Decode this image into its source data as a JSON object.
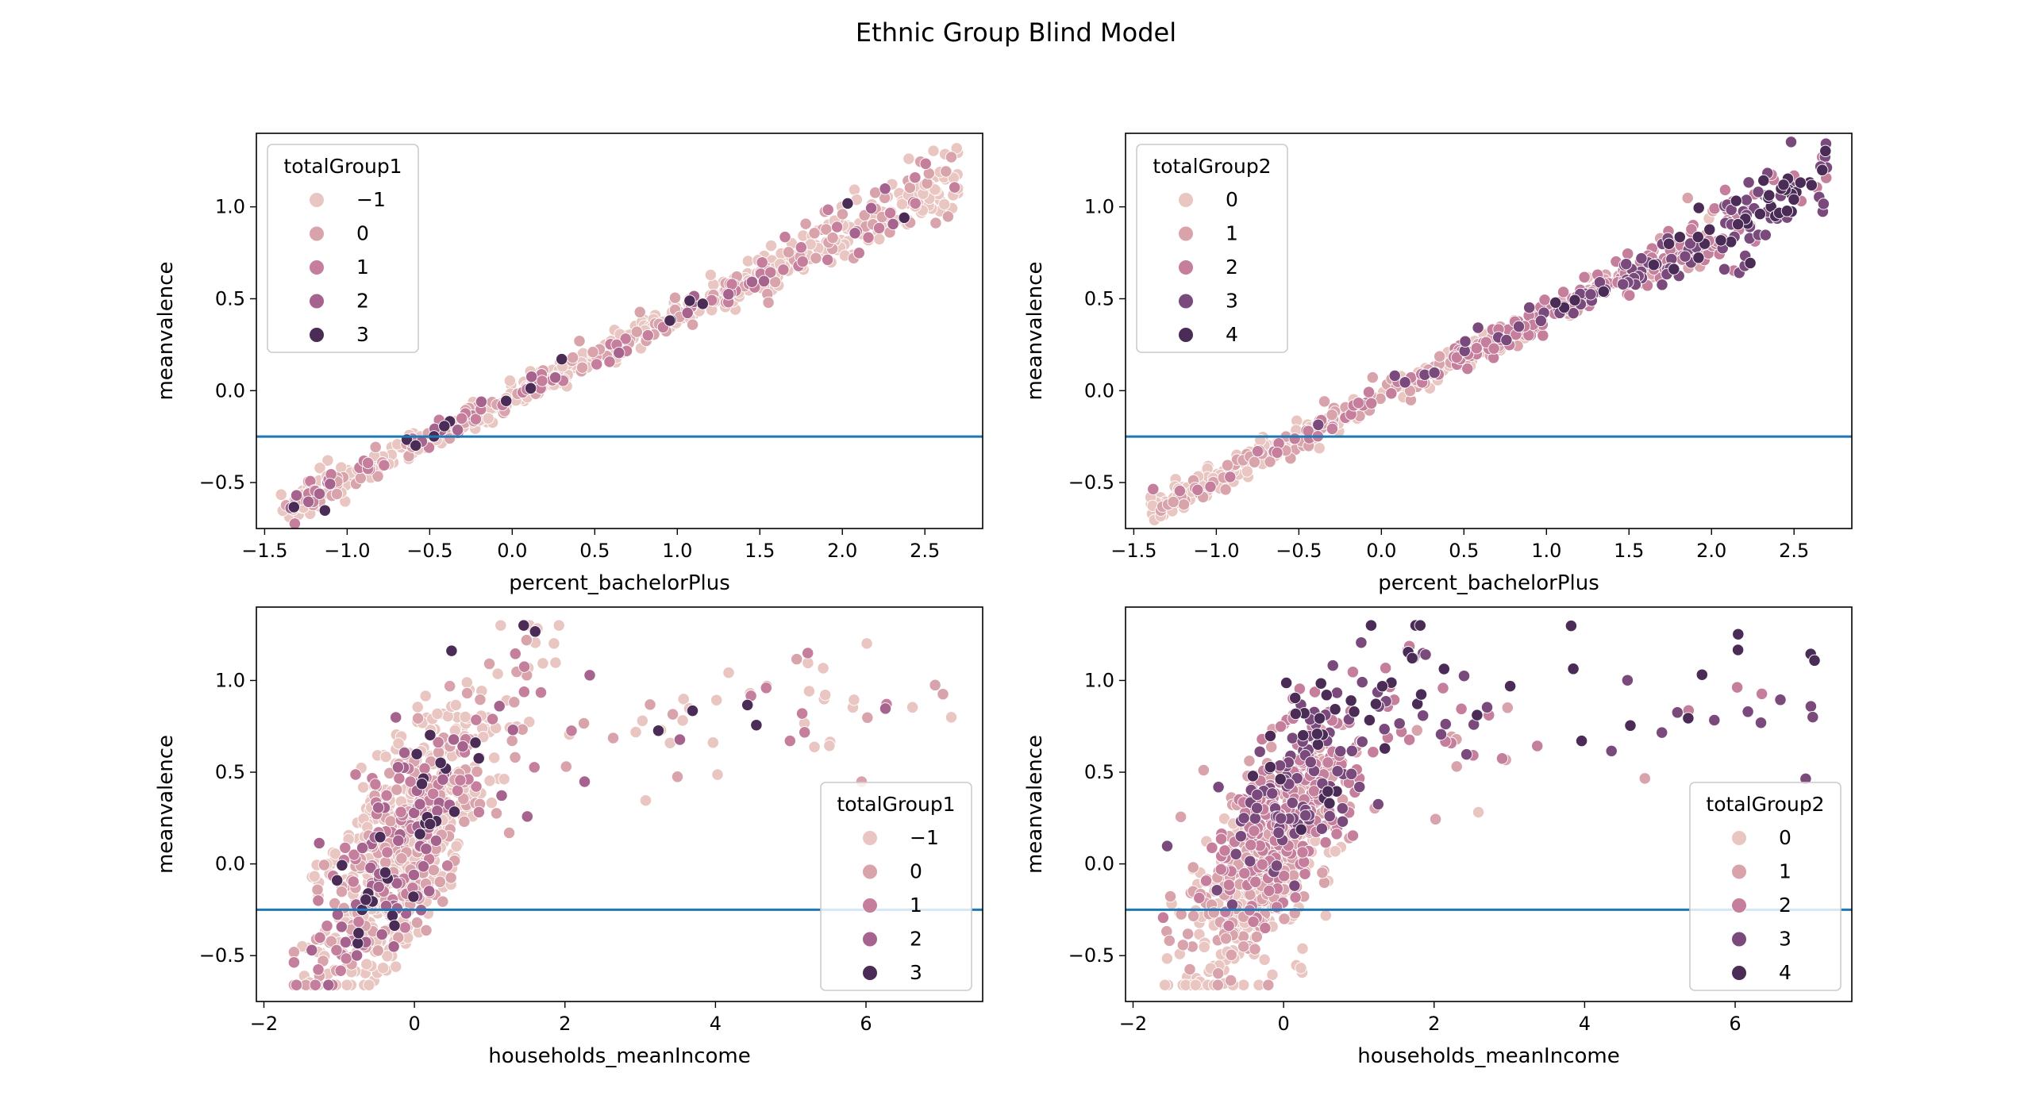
{
  "figure": {
    "title": "Ethnic Group Blind Model"
  },
  "palette": {
    "axis_color": "#000000",
    "hline_color": "#1f77b4",
    "legend_border": "#cccccc",
    "group_colors": [
      "#e9c6c1",
      "#d9a3ac",
      "#c57e9b",
      "#a5638d",
      "#7a4a7c",
      "#4a2c56"
    ]
  },
  "chart_data": [
    {
      "id": "top-left",
      "type": "scatter",
      "xlabel": "percent_bachelorPlus",
      "ylabel": "meanvalence",
      "xlim": [
        -1.55,
        2.85
      ],
      "ylim": [
        -0.75,
        1.4
      ],
      "xticks": [
        -1.5,
        -1.0,
        -0.5,
        0.0,
        0.5,
        1.0,
        1.5,
        2.0,
        2.5
      ],
      "xtick_labels": [
        "−1.5",
        "−1.0",
        "−0.5",
        "0.0",
        "0.5",
        "1.0",
        "1.5",
        "2.0",
        "2.5"
      ],
      "yticks": [
        -0.5,
        0.0,
        0.5,
        1.0
      ],
      "ytick_labels": [
        "−0.5",
        "0.0",
        "0.5",
        "1.0"
      ],
      "hline": -0.25,
      "legend": {
        "title": "totalGroup1",
        "placement": "upper-left",
        "entries": [
          "−1",
          "0",
          "1",
          "2",
          "3"
        ],
        "color_index": [
          0,
          1,
          2,
          3,
          5
        ]
      },
      "pattern": "linear",
      "x_range": [
        -1.4,
        2.7
      ],
      "fit": {
        "slope": 0.44,
        "intercept": -0.03
      },
      "noise": 0.04,
      "n_points": 700,
      "hue_dist": [
        0.66,
        0.18,
        0.1,
        0.04,
        0.02
      ],
      "seed": 11
    },
    {
      "id": "top-right",
      "type": "scatter",
      "xlabel": "percent_bachelorPlus",
      "ylabel": "meanvalence",
      "xlim": [
        -1.55,
        2.85
      ],
      "ylim": [
        -0.75,
        1.4
      ],
      "xticks": [
        -1.5,
        -1.0,
        -0.5,
        0.0,
        0.5,
        1.0,
        1.5,
        2.0,
        2.5
      ],
      "xtick_labels": [
        "−1.5",
        "−1.0",
        "−0.5",
        "0.0",
        "0.5",
        "1.0",
        "1.5",
        "2.0",
        "2.5"
      ],
      "yticks": [
        -0.5,
        0.0,
        0.5,
        1.0
      ],
      "ytick_labels": [
        "−0.5",
        "0.0",
        "0.5",
        "1.0"
      ],
      "hline": -0.25,
      "legend": {
        "title": "totalGroup2",
        "placement": "upper-left",
        "entries": [
          "0",
          "1",
          "2",
          "3",
          "4"
        ],
        "color_index": [
          0,
          1,
          2,
          4,
          5
        ]
      },
      "pattern": "linear",
      "x_range": [
        -1.4,
        2.7
      ],
      "fit": {
        "slope": 0.44,
        "intercept": -0.03
      },
      "noise": 0.04,
      "n_points": 700,
      "hue_by_x": true,
      "seed": 23
    },
    {
      "id": "bottom-left",
      "type": "scatter",
      "xlabel": "households_meanIncome",
      "ylabel": "meanvalence",
      "xlim": [
        -2.1,
        7.55
      ],
      "ylim": [
        -0.75,
        1.4
      ],
      "xticks": [
        -2,
        0,
        2,
        4,
        6
      ],
      "xtick_labels": [
        "−2",
        "0",
        "2",
        "4",
        "6"
      ],
      "yticks": [
        -0.5,
        0.0,
        0.5,
        1.0
      ],
      "ytick_labels": [
        "−0.5",
        "0.0",
        "0.5",
        "1.0"
      ],
      "hline": -0.25,
      "legend": {
        "title": "totalGroup1",
        "placement": "lower-right",
        "entries": [
          "−1",
          "0",
          "1",
          "2",
          "3"
        ],
        "color_index": [
          0,
          1,
          2,
          3,
          5
        ]
      },
      "pattern": "cloud",
      "n_points": 900,
      "hue_dist": [
        0.58,
        0.2,
        0.12,
        0.07,
        0.03
      ],
      "seed": 37
    },
    {
      "id": "bottom-right",
      "type": "scatter",
      "xlabel": "households_meanIncome",
      "ylabel": "meanvalence",
      "xlim": [
        -2.1,
        7.55
      ],
      "ylim": [
        -0.75,
        1.4
      ],
      "xticks": [
        -2,
        0,
        2,
        4,
        6
      ],
      "xtick_labels": [
        "−2",
        "0",
        "2",
        "4",
        "6"
      ],
      "yticks": [
        -0.5,
        0.0,
        0.5,
        1.0
      ],
      "ytick_labels": [
        "−0.5",
        "0.0",
        "0.5",
        "1.0"
      ],
      "hline": -0.25,
      "legend": {
        "title": "totalGroup2",
        "placement": "lower-right",
        "entries": [
          "0",
          "1",
          "2",
          "3",
          "4"
        ],
        "color_index": [
          0,
          1,
          2,
          4,
          5
        ]
      },
      "pattern": "cloud",
      "n_points": 900,
      "hue_by_y": true,
      "seed": 53
    }
  ]
}
